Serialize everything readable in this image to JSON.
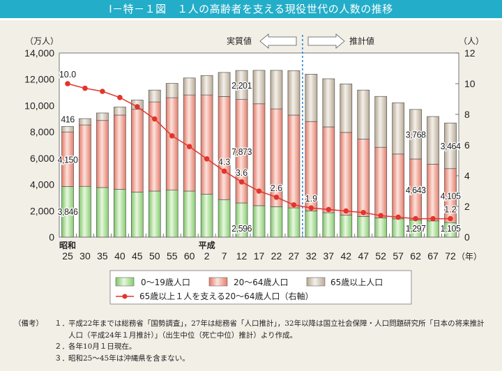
{
  "header": {
    "title": "Ⅰ－特－１図　１人の高齢者を支える現役世代の人数の推移"
  },
  "chart_data": {
    "type": "bar+line",
    "title": "Ⅰ－特－１図　１人の高齢者を支える現役世代の人数の推移",
    "ylabel_left": "（万人）",
    "ylabel_right": "（人）",
    "xlabel": "（年）",
    "ylim_left": [
      0,
      14000
    ],
    "yticks_left": [
      "0",
      "2,000",
      "4,000",
      "6,000",
      "8,000",
      "10,000",
      "12,000",
      "14,000"
    ],
    "ylim_right": [
      0,
      12
    ],
    "yticks_right": [
      "0",
      "2",
      "4",
      "6",
      "8",
      "10",
      "12"
    ],
    "era_labels": [
      {
        "label": "昭和",
        "at": "25"
      },
      {
        "label": "平成",
        "at": "2"
      }
    ],
    "categories": [
      "25",
      "30",
      "35",
      "40",
      "45",
      "50",
      "55",
      "60",
      "2",
      "7",
      "12",
      "17",
      "22",
      "27",
      "32",
      "37",
      "42",
      "47",
      "52",
      "57",
      "62",
      "67",
      "72"
    ],
    "divider_after": "27",
    "actual_label": "実質値",
    "estimate_label": "推計値",
    "series": [
      {
        "name": "0～19歳人口",
        "type": "bar",
        "color": "#8fd27a",
        "values": [
          3846,
          3860,
          3770,
          3640,
          3430,
          3500,
          3570,
          3500,
          3260,
          2850,
          2596,
          2390,
          2310,
          2220,
          1990,
          1850,
          1670,
          1570,
          1460,
          1390,
          1297,
          1230,
          1105
        ]
      },
      {
        "name": "20～64歳人口",
        "type": "bar",
        "color": "#ec8a7a",
        "values": [
          4150,
          4670,
          5100,
          5640,
          6290,
          6780,
          7030,
          7310,
          7550,
          7840,
          7873,
          7750,
          7440,
          7060,
          6800,
          6530,
          6290,
          5880,
          5370,
          4930,
          4643,
          4320,
          4105
        ]
      },
      {
        "name": "65歳以上人口",
        "type": "bar",
        "color": "#c9bba8",
        "values": [
          416,
          480,
          570,
          610,
          700,
          900,
          1090,
          1290,
          1480,
          1830,
          2201,
          2540,
          2930,
          3380,
          3600,
          3660,
          3690,
          3730,
          3870,
          3890,
          3768,
          3620,
          3464
        ]
      },
      {
        "name": "65歳以上１人を支える20～64歳人口（右軸）",
        "type": "line",
        "color": "#e2352c",
        "axis": "right",
        "values": [
          10.0,
          9.7,
          9.5,
          9.1,
          8.5,
          7.7,
          6.6,
          5.9,
          5.1,
          4.3,
          3.6,
          3.0,
          2.6,
          2.1,
          1.9,
          1.8,
          1.7,
          1.6,
          1.4,
          1.3,
          1.2,
          1.2,
          1.2
        ]
      }
    ],
    "bar_labels": [
      {
        "cat": "25",
        "series": 2,
        "text": "416"
      },
      {
        "cat": "25",
        "series": 1,
        "text": "4,150"
      },
      {
        "cat": "25",
        "series": 0,
        "text": "3,846"
      },
      {
        "cat": "12",
        "series": 2,
        "text": "2,201"
      },
      {
        "cat": "12",
        "series": 1,
        "text": "7,873"
      },
      {
        "cat": "12",
        "series": 0,
        "text": "2,596"
      },
      {
        "cat": "62",
        "series": 2,
        "text": "3,768"
      },
      {
        "cat": "62",
        "series": 1,
        "text": "4,643"
      },
      {
        "cat": "62",
        "series": 0,
        "text": "1,297"
      },
      {
        "cat": "72",
        "series": 2,
        "text": "3,464"
      },
      {
        "cat": "72",
        "series": 1,
        "text": "4,105"
      },
      {
        "cat": "72",
        "series": 0,
        "text": "1,105"
      }
    ],
    "line_labels": [
      {
        "cat": "25",
        "text": "10.0"
      },
      {
        "cat": "7",
        "text": "4.3"
      },
      {
        "cat": "12",
        "text": "3.6"
      },
      {
        "cat": "22",
        "text": "2.6"
      },
      {
        "cat": "32",
        "text": "1.9"
      },
      {
        "cat": "72",
        "text": "1.2"
      }
    ],
    "legend_placement": "bottom",
    "grid": false
  },
  "notes": {
    "label": "（備考）",
    "items": [
      {
        "num": "１．",
        "text": "平成22年までは総務省「国勢調査」，27年は総務省「人口推計」，32年以降は国立社会保障・人口問題研究所「日本の将来推計人口（平成24年１月推計）」（出生中位（死亡中位）推計）より作成。"
      },
      {
        "num": "２．",
        "text": "各年10月１日現在。"
      },
      {
        "num": "３．",
        "text": "昭和25～45年は沖縄県を含まない。"
      }
    ]
  }
}
